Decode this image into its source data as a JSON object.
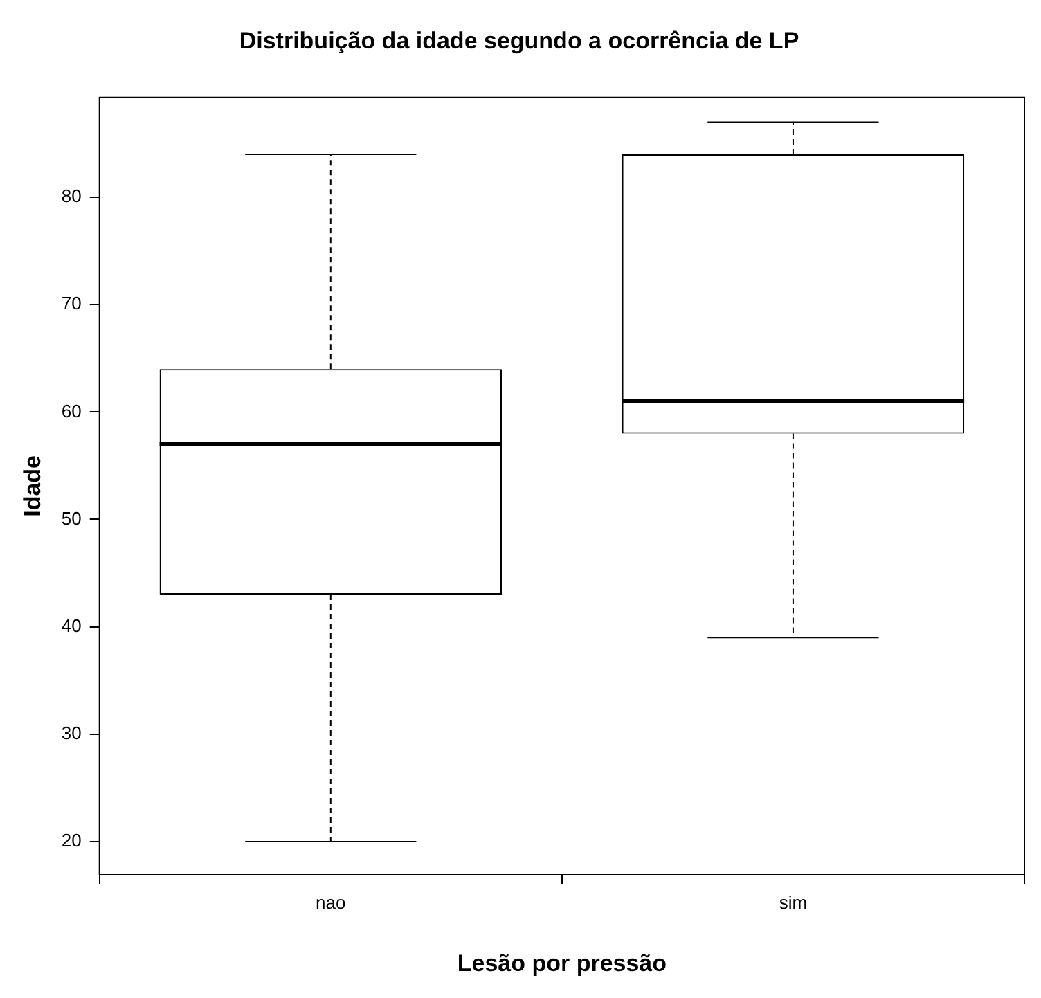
{
  "chart_data": {
    "type": "box",
    "title": "Distribuição da idade segundo a ocorrência de LP",
    "xlabel": "Lesão por pressão",
    "ylabel": "Idade",
    "categories": [
      "nao",
      "sim"
    ],
    "boxes": [
      {
        "low": 20,
        "q1": 43,
        "median": 57,
        "q3": 64,
        "high": 84
      },
      {
        "low": 39,
        "q1": 58,
        "median": 61,
        "q3": 84,
        "high": 87
      }
    ],
    "ylim": [
      16.9,
      89.3
    ],
    "yticks": [
      20,
      30,
      40,
      50,
      60,
      70,
      80
    ],
    "grid": false,
    "legend": false
  }
}
